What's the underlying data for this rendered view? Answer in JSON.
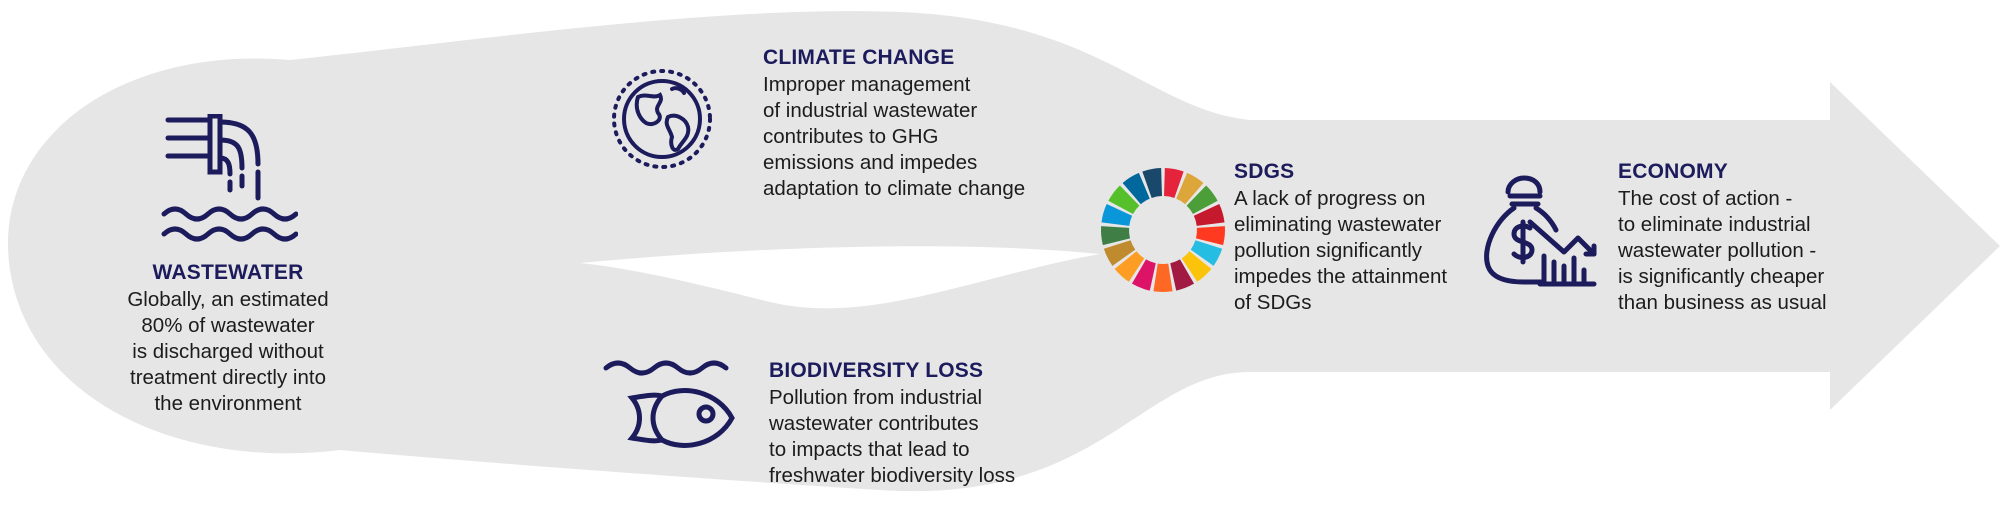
{
  "colors": {
    "arrow_fill": "#e6e6e6",
    "title_navy": "#1c1b5c",
    "icon_navy": "#1c1b5c",
    "body_text": "#1c1c1c"
  },
  "wastewater": {
    "icon": "wastewater-pipe-icon",
    "title": "WASTEWATER",
    "body": "Globally, an estimated\n80% of wastewater\nis discharged without\ntreatment directly into\nthe environment"
  },
  "climate": {
    "icon": "globe-icon",
    "title": "CLIMATE CHANGE",
    "body": "Improper management\nof industrial wastewater\ncontributes to GHG\nemissions and impedes\nadaptation to climate change"
  },
  "biodiversity": {
    "icon": "fish-icon",
    "title": "BIODIVERSITY LOSS",
    "body": "Pollution from industrial\nwastewater contributes\nto impacts that lead to\nfreshwater biodiversity loss"
  },
  "sdgs": {
    "icon": "sdg-wheel-icon",
    "title": "SDGS",
    "body": "A lack of progress on\neliminating wastewater\npollution significantly\nimpedes the attainment\nof SDGs",
    "wheel_colors": [
      "#e5243b",
      "#dda63a",
      "#4c9f38",
      "#c5192d",
      "#ff3a21",
      "#26bde2",
      "#fcc30b",
      "#a21942",
      "#fd6925",
      "#dd1367",
      "#fd9d24",
      "#bf8b2e",
      "#3f7e44",
      "#0a97d9",
      "#56c02b",
      "#00689d",
      "#19486a"
    ]
  },
  "economy": {
    "icon": "money-bag-chart-icon",
    "title": "ECONOMY",
    "body": "The cost of action -\nto eliminate industrial\nwastewater pollution -\nis significantly cheaper\nthan business as usual"
  }
}
